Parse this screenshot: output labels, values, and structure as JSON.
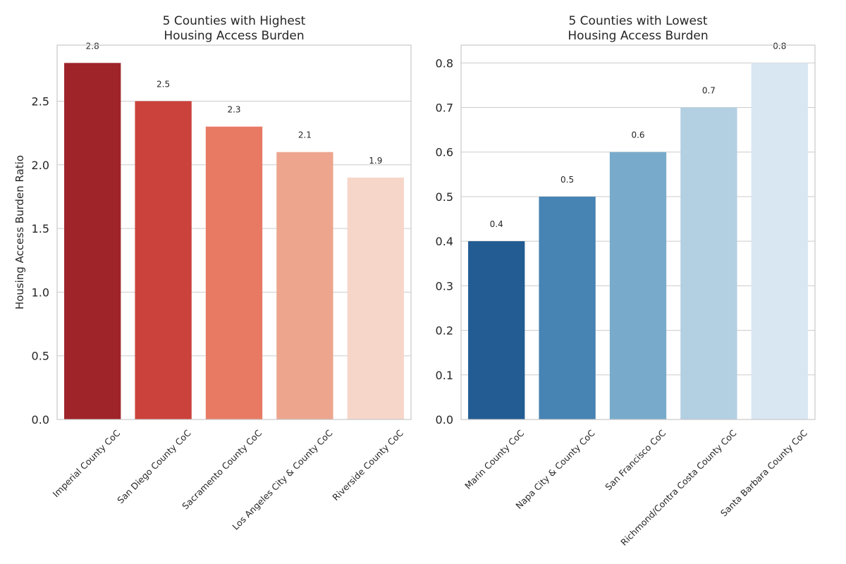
{
  "chart_data": [
    {
      "type": "bar",
      "title": [
        "5 Counties with Highest",
        "Housing Access Burden"
      ],
      "ylabel": "Housing Access Burden Ratio",
      "categories": [
        "Imperial County CoC",
        "San Diego County CoC",
        "Sacramento County CoC",
        "Los Angeles City & County CoC",
        "Riverside County CoC"
      ],
      "values": [
        2.8,
        2.5,
        2.3,
        2.1,
        1.9
      ],
      "value_labels": [
        "2.8",
        "2.5",
        "2.3",
        "2.1",
        "1.9"
      ],
      "colors": [
        "#9e242a",
        "#cb423c",
        "#e87a64",
        "#eda58e",
        "#f7d6ca"
      ],
      "ylim": [
        0,
        2.94
      ],
      "yticks": [
        0.0,
        0.5,
        1.0,
        1.5,
        2.0,
        2.5
      ],
      "ytick_labels": [
        "0.0",
        "0.5",
        "1.0",
        "1.5",
        "2.0",
        "2.5"
      ],
      "grid": true
    },
    {
      "type": "bar",
      "title": [
        "5 Counties with Lowest",
        "Housing Access Burden"
      ],
      "ylabel": "",
      "categories": [
        "Marin County CoC",
        "Napa City & County CoC",
        "San Francisco CoC",
        "Richmond/Contra Costa County CoC",
        "Santa Barbara County CoC"
      ],
      "values": [
        0.4,
        0.5,
        0.6,
        0.7,
        0.8
      ],
      "value_labels": [
        "0.4",
        "0.5",
        "0.6",
        "0.7",
        "0.8"
      ],
      "colors": [
        "#225c93",
        "#4783b3",
        "#78abcb",
        "#b3cfe2",
        "#d9e7f3"
      ],
      "ylim": [
        0,
        0.84
      ],
      "yticks": [
        0.0,
        0.1,
        0.2,
        0.3,
        0.4,
        0.5,
        0.6,
        0.7,
        0.8
      ],
      "ytick_labels": [
        "0.0",
        "0.1",
        "0.2",
        "0.3",
        "0.4",
        "0.5",
        "0.6",
        "0.7",
        "0.8"
      ],
      "grid": true
    }
  ]
}
